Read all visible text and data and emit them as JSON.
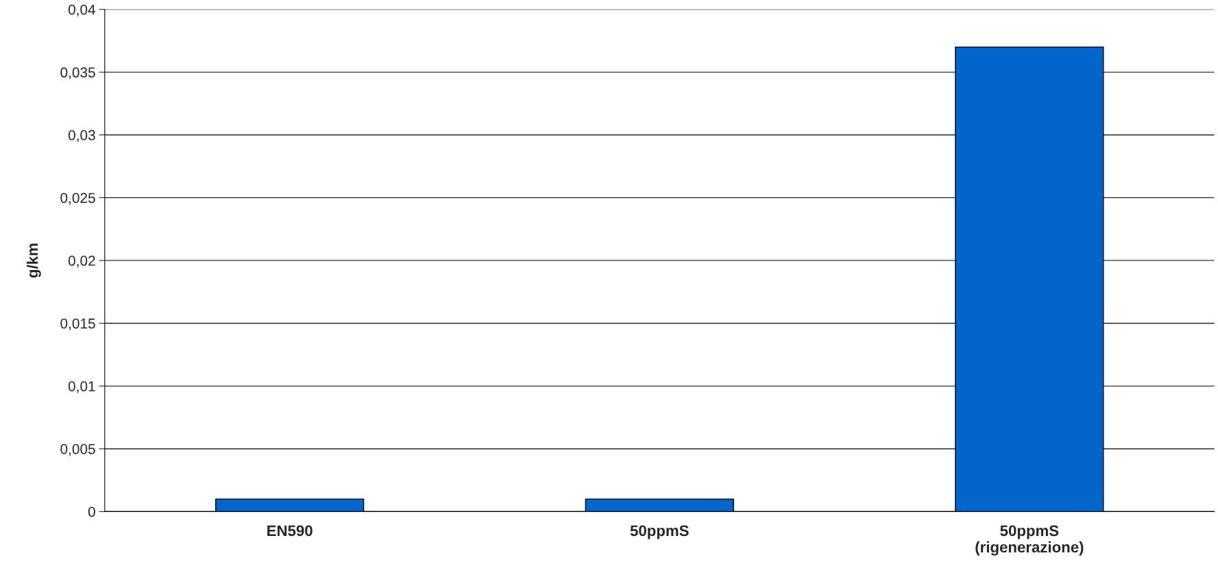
{
  "chart_data": {
    "type": "bar",
    "ylabel": "g/km",
    "categories": [
      "EN590",
      "50ppmS",
      "50ppmS\n(rigenerazione)"
    ],
    "values": [
      0.001,
      0.001,
      0.037
    ],
    "color": "#0066cc",
    "ylim": [
      0,
      0.04
    ],
    "yticks": [
      0,
      {
        "value": 0.005,
        "label": "0,005"
      },
      {
        "value": 0.01,
        "label": "0,01"
      },
      {
        "value": 0.015,
        "label": "0,015"
      },
      {
        "value": 0.02,
        "label": "0,02"
      },
      {
        "value": 0.025,
        "label": "0,025"
      },
      {
        "value": 0.03,
        "label": "0,03"
      },
      {
        "value": 0.035,
        "label": "0,035"
      },
      {
        "value": 0.04,
        "label": "0,04"
      }
    ],
    "grid": "y",
    "legend": false
  }
}
